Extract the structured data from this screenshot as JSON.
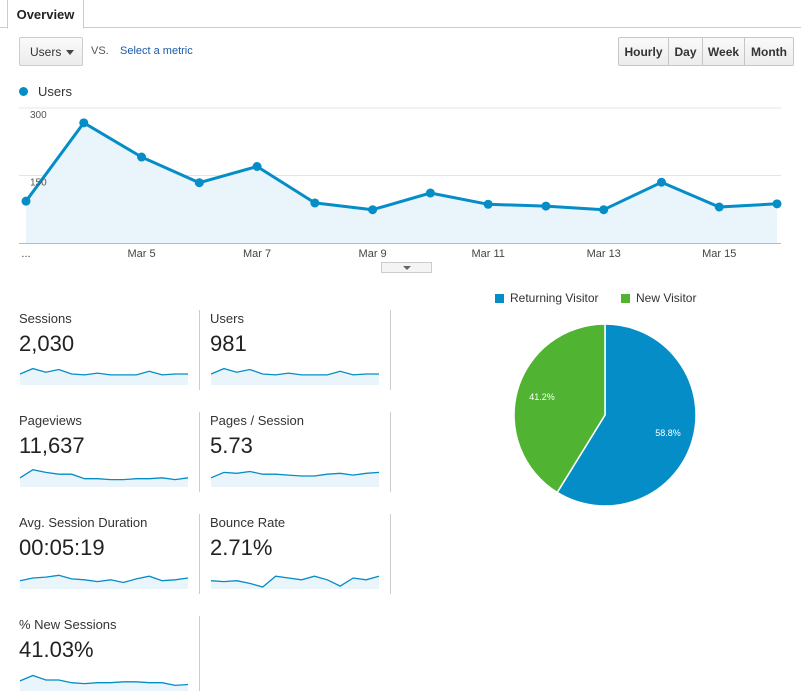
{
  "tabs": [
    {
      "label": "Overview"
    }
  ],
  "metric_selector": {
    "value": "Users",
    "vs": "VS.",
    "select_metric": "Select a metric"
  },
  "range_buttons": [
    {
      "label": "Hourly",
      "active": false
    },
    {
      "label": "Day",
      "active": true
    },
    {
      "label": "Week",
      "active": false
    },
    {
      "label": "Month",
      "active": false
    }
  ],
  "colors": {
    "primary": "#058dc7",
    "secondary": "#50b432",
    "fill": "#e9f4fb"
  },
  "chart_data": [
    {
      "type": "line",
      "series": [
        {
          "name": "Users",
          "values": [
            93,
            267,
            191,
            134,
            170,
            89,
            74,
            111,
            86,
            82,
            74,
            135,
            80,
            87
          ]
        }
      ],
      "ylim": [
        0,
        300
      ],
      "yticks": [
        "300",
        "150"
      ],
      "xtick_labels": [
        "...",
        "Mar 5",
        "Mar 7",
        "Mar 9",
        "Mar 11",
        "Mar 13",
        "Mar 15"
      ]
    },
    {
      "type": "pie",
      "slices": [
        {
          "name": "Returning Visitor",
          "value": 58.8,
          "label": "58.8%"
        },
        {
          "name": "New Visitor",
          "value": 41.2,
          "label": "41.2%"
        }
      ]
    }
  ],
  "metrics": [
    {
      "name": "Sessions",
      "value": "2,030",
      "spark": [
        10,
        16,
        12,
        15,
        10,
        9,
        11,
        9,
        9,
        9,
        13,
        9,
        10,
        10
      ]
    },
    {
      "name": "Users",
      "value": "981",
      "spark": [
        10,
        16,
        12,
        15,
        10,
        9,
        11,
        9,
        9,
        9,
        13,
        9,
        10,
        10
      ]
    },
    {
      "name": "Pageviews",
      "value": "11,637",
      "spark": [
        8,
        17,
        14,
        12,
        12,
        7,
        7,
        6,
        6,
        7,
        7,
        8,
        6,
        8
      ]
    },
    {
      "name": "Pages / Session",
      "value": "5.73",
      "spark": [
        8,
        14,
        13,
        15,
        12,
        12,
        11,
        10,
        10,
        12,
        13,
        11,
        13,
        14
      ]
    },
    {
      "name": "Avg. Session Duration",
      "value": "00:05:19",
      "spark": [
        7,
        10,
        11,
        13,
        9,
        8,
        6,
        8,
        5,
        9,
        12,
        7,
        8,
        10
      ]
    },
    {
      "name": "Bounce Rate",
      "value": "2.71%",
      "spark": [
        7,
        6,
        7,
        4,
        0,
        12,
        10,
        8,
        12,
        8,
        1,
        10,
        8,
        12
      ]
    },
    {
      "name": "% New Sessions",
      "value": "41.03%",
      "spark": [
        9,
        15,
        10,
        10,
        7,
        6,
        7,
        7,
        8,
        8,
        7,
        7,
        4,
        5
      ]
    }
  ]
}
